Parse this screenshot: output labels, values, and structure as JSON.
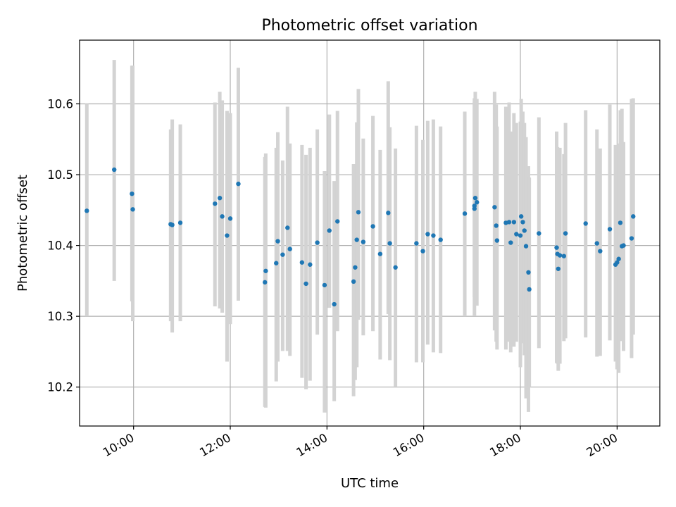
{
  "chart_data": {
    "type": "scatter",
    "title": "Photometric offset variation",
    "xlabel": "UTC time",
    "ylabel": "Photometric offset",
    "x_range": [
      "08:53",
      "20:53"
    ],
    "ylim": [
      10.145,
      10.69
    ],
    "grid": true,
    "x_tick_labels": [
      "10:00",
      "12:00",
      "14:00",
      "16:00",
      "18:00",
      "20:00"
    ],
    "y_tick_values": [
      10.2,
      10.3,
      10.4,
      10.5,
      10.6
    ],
    "y_tick_labels": [
      "10.2",
      "10.3",
      "10.4",
      "10.5",
      "10.6"
    ],
    "colors": {
      "marker": "#1f77b4",
      "errorbar": "#d3d3d3",
      "grid": "#b0b0b0"
    },
    "series": [
      {
        "x": [
          "09:02",
          "09:36",
          "09:58",
          "09:59",
          "10:46",
          "10:48",
          "10:58",
          "11:41",
          "11:47",
          "11:50",
          "11:56",
          "12:00",
          "12:10",
          "12:43",
          "12:44",
          "12:57",
          "12:59",
          "13:05",
          "13:11",
          "13:14",
          "13:29",
          "13:34",
          "13:39",
          "13:48",
          "13:57",
          "14:03",
          "14:09",
          "14:13",
          "14:33",
          "14:35",
          "14:37",
          "14:39",
          "14:45",
          "14:57",
          "15:06",
          "15:16",
          "15:18",
          "15:25",
          "15:51",
          "15:59",
          "16:05",
          "16:12",
          "16:21",
          "16:51",
          "17:03",
          "17:03",
          "17:04",
          "17:06",
          "17:28",
          "17:30",
          "17:31",
          "17:42",
          "17:46",
          "17:48",
          "17:52",
          "17:55",
          "18:00",
          "18:01",
          "18:03",
          "18:05",
          "18:07",
          "18:10",
          "18:11",
          "18:23",
          "18:45",
          "18:46",
          "18:47",
          "18:49",
          "18:54",
          "18:56",
          "19:21",
          "19:35",
          "19:39",
          "19:51",
          "19:58",
          "20:00",
          "20:02",
          "20:04",
          "20:06",
          "20:08",
          "20:18",
          "20:20"
        ],
        "y": [
          10.449,
          10.507,
          10.473,
          10.451,
          10.43,
          10.429,
          10.432,
          10.459,
          10.467,
          10.441,
          10.414,
          10.438,
          10.487,
          10.348,
          10.364,
          10.375,
          10.406,
          10.387,
          10.425,
          10.395,
          10.376,
          10.346,
          10.373,
          10.404,
          10.344,
          10.421,
          10.317,
          10.434,
          10.349,
          10.369,
          10.408,
          10.447,
          10.405,
          10.427,
          10.388,
          10.446,
          10.403,
          10.369,
          10.403,
          10.392,
          10.416,
          10.414,
          10.408,
          10.445,
          10.452,
          10.456,
          10.467,
          10.461,
          10.454,
          10.428,
          10.407,
          10.432,
          10.433,
          10.404,
          10.433,
          10.416,
          10.414,
          10.441,
          10.433,
          10.421,
          10.399,
          10.362,
          10.338,
          10.417,
          10.397,
          10.388,
          10.367,
          10.386,
          10.385,
          10.417,
          10.431,
          10.403,
          10.392,
          10.423,
          10.373,
          10.376,
          10.381,
          10.432,
          10.399,
          10.4,
          10.41,
          10.441
        ],
        "yerr_low": [
          0.149,
          0.157,
          0.152,
          0.158,
          0.137,
          0.152,
          0.139,
          0.145,
          0.156,
          0.136,
          0.178,
          0.149,
          0.165,
          0.176,
          0.193,
          0.167,
          0.17,
          0.136,
          0.174,
          0.151,
          0.163,
          0.149,
          0.164,
          0.13,
          0.18,
          0.109,
          0.137,
          0.155,
          0.162,
          0.159,
          0.18,
          0.152,
          0.132,
          0.148,
          0.149,
          0.143,
          0.165,
          0.168,
          0.168,
          0.157,
          0.156,
          0.165,
          0.16,
          0.145,
          0.151,
          0.129,
          0.13,
          0.146,
          0.174,
          0.164,
          0.154,
          0.179,
          0.169,
          0.155,
          0.176,
          0.152,
          0.186,
          0.179,
          0.151,
          0.176,
          0.215,
          0.197,
          0.138,
          0.162,
          0.163,
          0.155,
          0.144,
          0.153,
          0.12,
          0.148,
          0.161,
          0.16,
          0.148,
          0.157,
          0.137,
          0.151,
          0.161,
          0.161,
          0.134,
          0.149,
          0.169,
          0.167
        ],
        "yerr_high": [
          0.151,
          0.155,
          0.181,
          0.203,
          0.134,
          0.149,
          0.139,
          0.143,
          0.15,
          0.164,
          0.176,
          0.149,
          0.164,
          0.177,
          0.166,
          0.163,
          0.154,
          0.133,
          0.171,
          0.149,
          0.166,
          0.182,
          0.165,
          0.16,
          0.161,
          0.164,
          0.174,
          0.156,
          0.166,
          0.142,
          0.166,
          0.174,
          0.146,
          0.156,
          0.147,
          0.186,
          0.164,
          0.168,
          0.166,
          0.157,
          0.16,
          0.164,
          0.16,
          0.144,
          0.151,
          0.152,
          0.15,
          0.146,
          0.163,
          0.171,
          0.161,
          0.164,
          0.169,
          0.157,
          0.154,
          0.157,
          0.161,
          0.166,
          0.156,
          0.152,
          0.154,
          0.15,
          0.158,
          0.164,
          0.164,
          0.151,
          0.147,
          0.152,
          0.144,
          0.156,
          0.16,
          0.161,
          0.145,
          0.176,
          0.169,
          0.149,
          0.163,
          0.159,
          0.194,
          0.146,
          0.197,
          0.167
        ]
      }
    ]
  }
}
